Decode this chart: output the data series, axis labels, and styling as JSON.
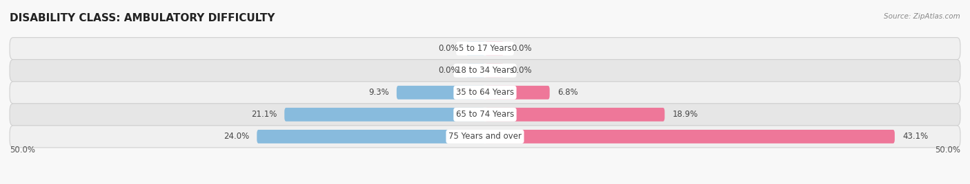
{
  "title": "DISABILITY CLASS: AMBULATORY DIFFICULTY",
  "source": "Source: ZipAtlas.com",
  "categories": [
    "5 to 17 Years",
    "18 to 34 Years",
    "35 to 64 Years",
    "65 to 74 Years",
    "75 Years and over"
  ],
  "male_values": [
    0.0,
    0.0,
    9.3,
    21.1,
    24.0
  ],
  "female_values": [
    0.0,
    0.0,
    6.8,
    18.9,
    43.1
  ],
  "male_color": "#88bbdd",
  "female_color": "#ee7799",
  "max_val": 50.0,
  "min_bar_val": 2.0,
  "title_fontsize": 11,
  "label_fontsize": 8.5,
  "axis_label_fontsize": 8.5,
  "bar_height": 0.62,
  "row_colors": [
    "#f0f0f0",
    "#e6e6e6"
  ],
  "row_sep_color": "#d0d0d0",
  "center_label_color": "#444444",
  "value_label_color": "#444444",
  "bg_color": "#f8f8f8"
}
